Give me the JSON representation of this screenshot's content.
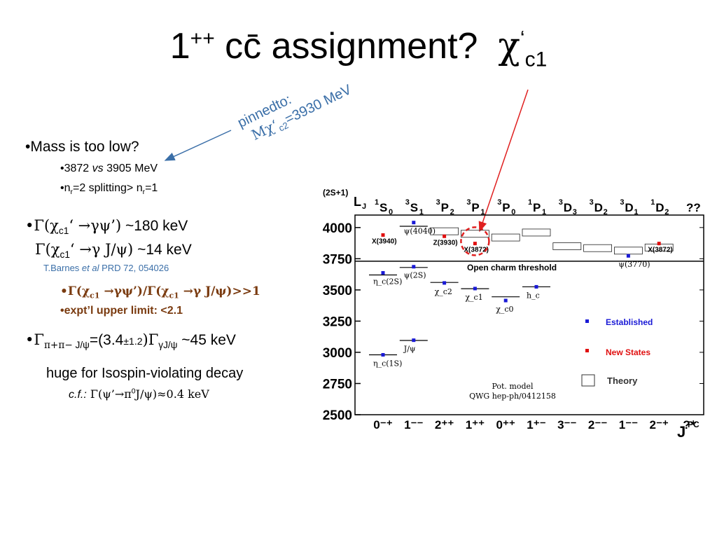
{
  "title": {
    "prefix": "1",
    "sup": "++",
    "main": "cc̄ assignment?",
    "chi": "χ",
    "chi_sup": "‘",
    "chi_sub": "c1"
  },
  "annotation": {
    "line1": "pinnedto:",
    "line2_pre": "Mχ‘",
    "line2_sub": "c2",
    "line2_post": "=3930 MeV"
  },
  "bullets": {
    "b1": "•Mass is too low?",
    "b1a_pre": "•3872 ",
    "b1a_em": "vs",
    "b1a_post": " 3905 MeV",
    "b1b_a": "•n",
    "b1b_sub1": "r",
    "b1b_b": "=2 splitting> n",
    "b1b_sub2": "r",
    "b1b_c": "=1",
    "b2_a": "•Γ(χ",
    "b2_sub": "c1",
    "b2_b": "‘ →γψ’)",
    "b2_c": " ~180 keV",
    "b2l2_a": "Γ(χ",
    "b2l2_sub": "c1",
    "b2l2_b": "‘ →γ J/ψ)",
    "b2l2_c": " ~14 keV",
    "ref_a": "T.Barnes ",
    "ref_em": "et al",
    "ref_b": " PRD 72, 054026",
    "b3_a": "•Γ(χ",
    "b3_sub1": "c1",
    "b3_b": " →γψ’)/Γ(χ",
    "b3_sub2": "c1",
    "b3_c": " →γ J/ψ)>>1",
    "b4": "•expt’l upper limit: <2.1",
    "b5_a": "•Γ",
    "b5_sub1": "π+π−",
    "b5_sub1b": " J/ψ",
    "b5_b": "=(3.4",
    "b5_pm": "±1.2",
    "b5_c": ")Γ",
    "b5_sub2": "γJ/ψ",
    "b5_d": " ~45 keV",
    "b6": "huge for Isospin-violating decay",
    "b7_em": "c.f.:",
    "b7_a": "  Γ(ψ’→π",
    "b7_sup": "0",
    "b7_b": "J/ψ)≈0.4 keV"
  },
  "chart_data": {
    "type": "scatter",
    "title": "",
    "ylabel_top": "(2S+1)",
    "ylabel": "L",
    "ylabel_sub": "J",
    "xlabel": "J",
    "xlabel_sup": "PC",
    "ylim": [
      2500,
      4100
    ],
    "yticks": [
      "4000",
      "3750",
      "3500",
      "3250",
      "3000",
      "2750",
      "2500"
    ],
    "ytick_values": [
      4000,
      3750,
      3500,
      3250,
      3000,
      2750,
      2500
    ],
    "top_labels": [
      {
        "sup": "1",
        "main": "S",
        "sub": "0"
      },
      {
        "sup": "3",
        "main": "S",
        "sub": "1"
      },
      {
        "sup": "3",
        "main": "P",
        "sub": "2"
      },
      {
        "sup": "3",
        "main": "P",
        "sub": "1"
      },
      {
        "sup": "3",
        "main": "P",
        "sub": "0"
      },
      {
        "sup": "1",
        "main": "P",
        "sub": "1"
      },
      {
        "sup": "3",
        "main": "D",
        "sub": "3"
      },
      {
        "sup": "3",
        "main": "D",
        "sub": "2"
      },
      {
        "sup": "3",
        "main": "D",
        "sub": "1"
      },
      {
        "sup": "1",
        "main": "D",
        "sub": "2"
      },
      {
        "sup": "",
        "main": "??",
        "sub": ""
      }
    ],
    "bottom_labels": [
      "0⁻⁺",
      "1⁻⁻",
      "2⁺⁺",
      "1⁺⁺",
      "0⁺⁺",
      "1⁺⁻",
      "3⁻⁻",
      "2⁻⁻",
      "1⁻⁻",
      "2⁻⁺",
      "?⁺"
    ],
    "threshold": {
      "value": 3730,
      "label": "Open charm threshold"
    },
    "theory_levels": [
      {
        "col": 0,
        "value": 2980
      },
      {
        "col": 0,
        "value": 3620
      },
      {
        "col": 1,
        "value": 3095
      },
      {
        "col": 1,
        "value": 3680
      },
      {
        "col": 1,
        "value": 4010
      },
      {
        "col": 2,
        "value": 3560
      },
      {
        "col": 2,
        "value": 3970,
        "box": true
      },
      {
        "col": 3,
        "value": 3510
      },
      {
        "col": 3,
        "value": 3950,
        "box": true
      },
      {
        "col": 4,
        "value": 3445
      },
      {
        "col": 4,
        "value": 3920,
        "box": true
      },
      {
        "col": 5,
        "value": 3525
      },
      {
        "col": 5,
        "value": 3960,
        "box": true
      },
      {
        "col": 6,
        "value": 3850,
        "box": true
      },
      {
        "col": 7,
        "value": 3835,
        "box": true
      },
      {
        "col": 8,
        "value": 3815,
        "box": true
      },
      {
        "col": 9,
        "value": 3840,
        "box": true
      }
    ],
    "established": [
      {
        "col": 0,
        "value": 2980,
        "label": "η_c(1S)"
      },
      {
        "col": 0,
        "value": 3637,
        "label": "η_c(2S)"
      },
      {
        "col": 1,
        "value": 3097,
        "label": "J/ψ"
      },
      {
        "col": 1,
        "value": 3686,
        "label": "ψ(2S)"
      },
      {
        "col": 1,
        "value": 4040,
        "label": "ψ(4040)"
      },
      {
        "col": 2,
        "value": 3556,
        "label": "χ_c2"
      },
      {
        "col": 3,
        "value": 3511,
        "label": "χ_c1"
      },
      {
        "col": 4,
        "value": 3415,
        "label": "χ_c0"
      },
      {
        "col": 5,
        "value": 3525,
        "label": "h_c"
      },
      {
        "col": 8,
        "value": 3773,
        "label": "ψ(3770)"
      }
    ],
    "new_states": [
      {
        "col": 0,
        "value": 3940,
        "label": "X(3940)"
      },
      {
        "col": 2,
        "value": 3930,
        "label": "Z(3930)"
      },
      {
        "col": 3,
        "value": 3872,
        "label": "X(3872)"
      },
      {
        "col": 9,
        "value": 3872,
        "label": "X(3872)"
      }
    ],
    "legend": {
      "established": "Established",
      "new_states": "New States",
      "theory": "Theory"
    },
    "source_line1": "Pot. model",
    "source_line2": "QWG hep-ph/0412158",
    "colors": {
      "established": "#1a1ad6",
      "new_states": "#e01010",
      "arrow_red": "#e02020",
      "arrow_blue": "#3b6fa8"
    }
  }
}
